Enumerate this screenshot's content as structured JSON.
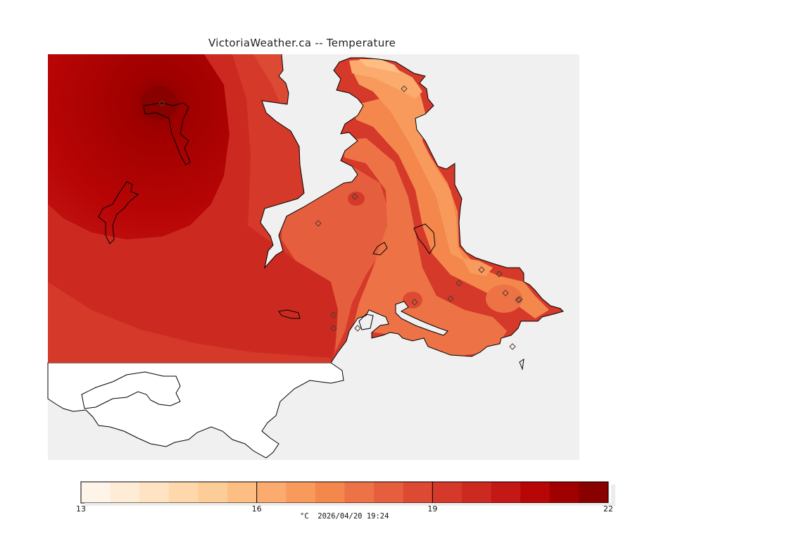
{
  "map": {
    "title": "VictoriaWeather.ca -- Temperature",
    "colors": {
      "ocean": "#f0f0f0",
      "land_outside": "#ffffff",
      "coast": "#000000",
      "station_marker": "#5a3a2a"
    },
    "stations_icon": "diamond-icon"
  },
  "colorbar": {
    "min": 13,
    "max": 22,
    "step": 0.5,
    "ticks": [
      "13",
      "16",
      "19",
      "22"
    ],
    "colors": [
      "#fff4e8",
      "#ffecd6",
      "#ffe3c2",
      "#fed8ab",
      "#fdcd97",
      "#fdbd83",
      "#fcab6e",
      "#f89a5c",
      "#f4874c",
      "#ed7347",
      "#e55f3f",
      "#dd4a33",
      "#d4392a",
      "#cc2a20",
      "#c31816",
      "#b80505",
      "#a00000",
      "#880000"
    ],
    "caption": "°C  2026/04/20 19:24"
  }
}
